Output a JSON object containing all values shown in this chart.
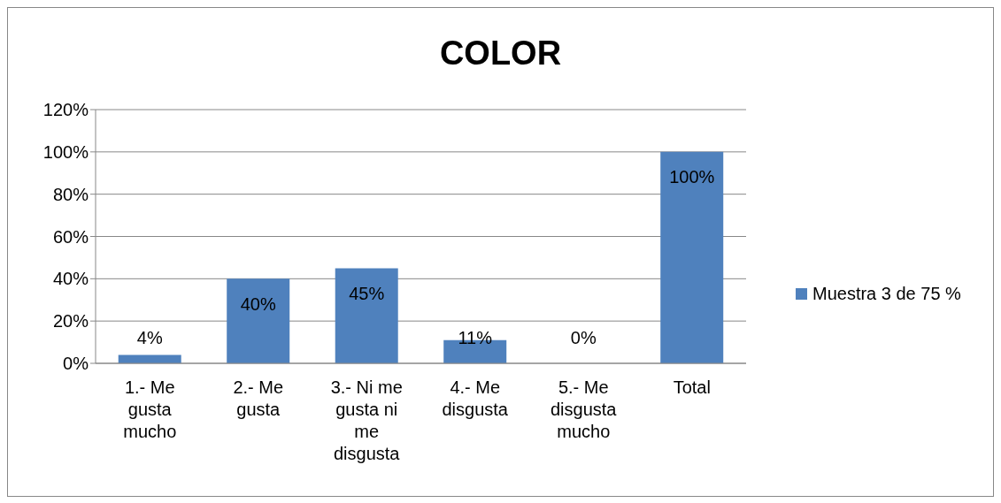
{
  "chart_data": {
    "type": "bar",
    "title": "COLOR",
    "categories": [
      "1.- Me gusta mucho",
      "2.- Me gusta",
      "3.- Ni me gusta ni me disgusta",
      "4.- Me disgusta",
      "5.- Me disgusta mucho",
      "Total"
    ],
    "series": [
      {
        "name": "Muestra 3 de 75 %",
        "color": "#4f81bd",
        "values": [
          4,
          40,
          45,
          11,
          0,
          100
        ],
        "value_labels": [
          "4%",
          "40%",
          "45%",
          "11%",
          "0%",
          "100%"
        ]
      }
    ],
    "ylim": [
      0,
      120
    ],
    "yticks": [
      {
        "value": 0,
        "label": "0%"
      },
      {
        "value": 20,
        "label": "20%"
      },
      {
        "value": 40,
        "label": "40%"
      },
      {
        "value": 60,
        "label": "60%"
      },
      {
        "value": 80,
        "label": "80%"
      },
      {
        "value": 100,
        "label": "100%"
      },
      {
        "value": 120,
        "label": "120%"
      }
    ],
    "grid": "y",
    "legend": "right"
  }
}
